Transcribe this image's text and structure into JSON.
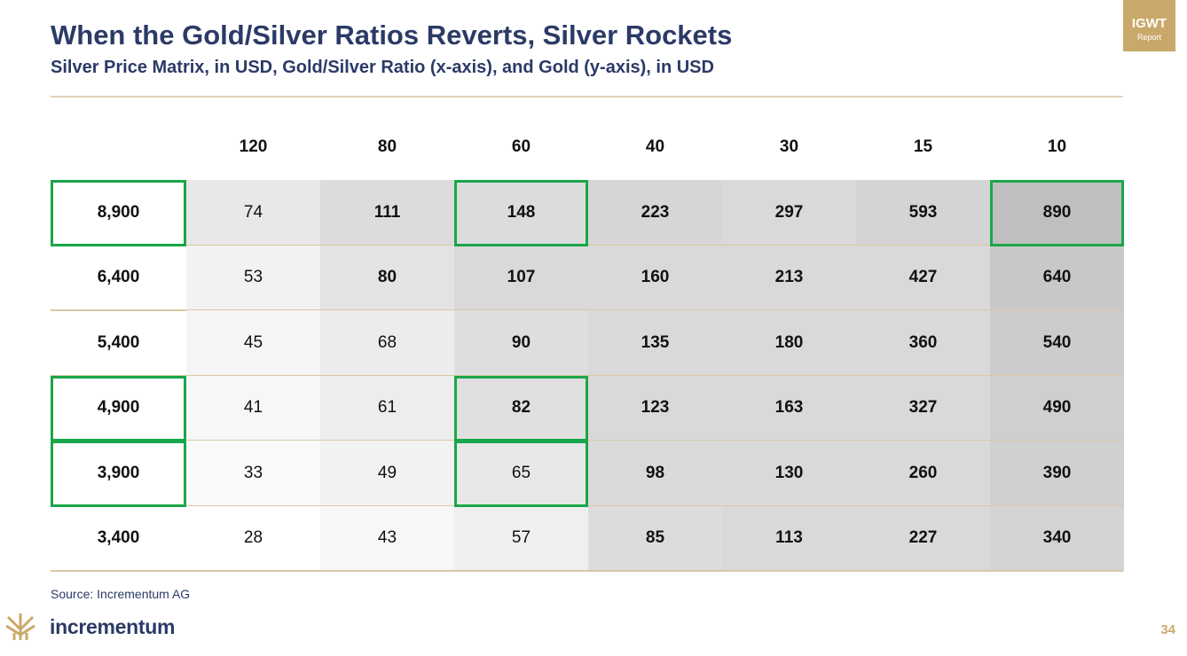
{
  "header": {
    "title": "When the Gold/Silver Ratios Reverts, Silver Rockets",
    "subtitle": "Silver Price Matrix, in USD, Gold/Silver Ratio (x-axis), and Gold (y-axis), in USD",
    "badge": {
      "title": "IGWT",
      "subtitle": "Report"
    }
  },
  "table": {
    "columns": [
      "120",
      "80",
      "60",
      "40",
      "30",
      "15",
      "10"
    ],
    "rows": [
      {
        "label": "8,900",
        "cells": [
          "74",
          "111",
          "148",
          "223",
          "297",
          "593",
          "890"
        ]
      },
      {
        "label": "6,400",
        "cells": [
          "53",
          "80",
          "107",
          "160",
          "213",
          "427",
          "640"
        ]
      },
      {
        "label": "5,400",
        "cells": [
          "45",
          "68",
          "90",
          "135",
          "180",
          "360",
          "540"
        ]
      },
      {
        "label": "4,900",
        "cells": [
          "41",
          "61",
          "82",
          "123",
          "163",
          "327",
          "490"
        ]
      },
      {
        "label": "3,900",
        "cells": [
          "33",
          "49",
          "65",
          "98",
          "130",
          "260",
          "390"
        ]
      },
      {
        "label": "3,400",
        "cells": [
          "28",
          "43",
          "57",
          "85",
          "113",
          "227",
          "340"
        ]
      }
    ]
  },
  "footer": {
    "source": "Source: Incrementum AG",
    "logo": "incrementum",
    "page": "34"
  }
}
